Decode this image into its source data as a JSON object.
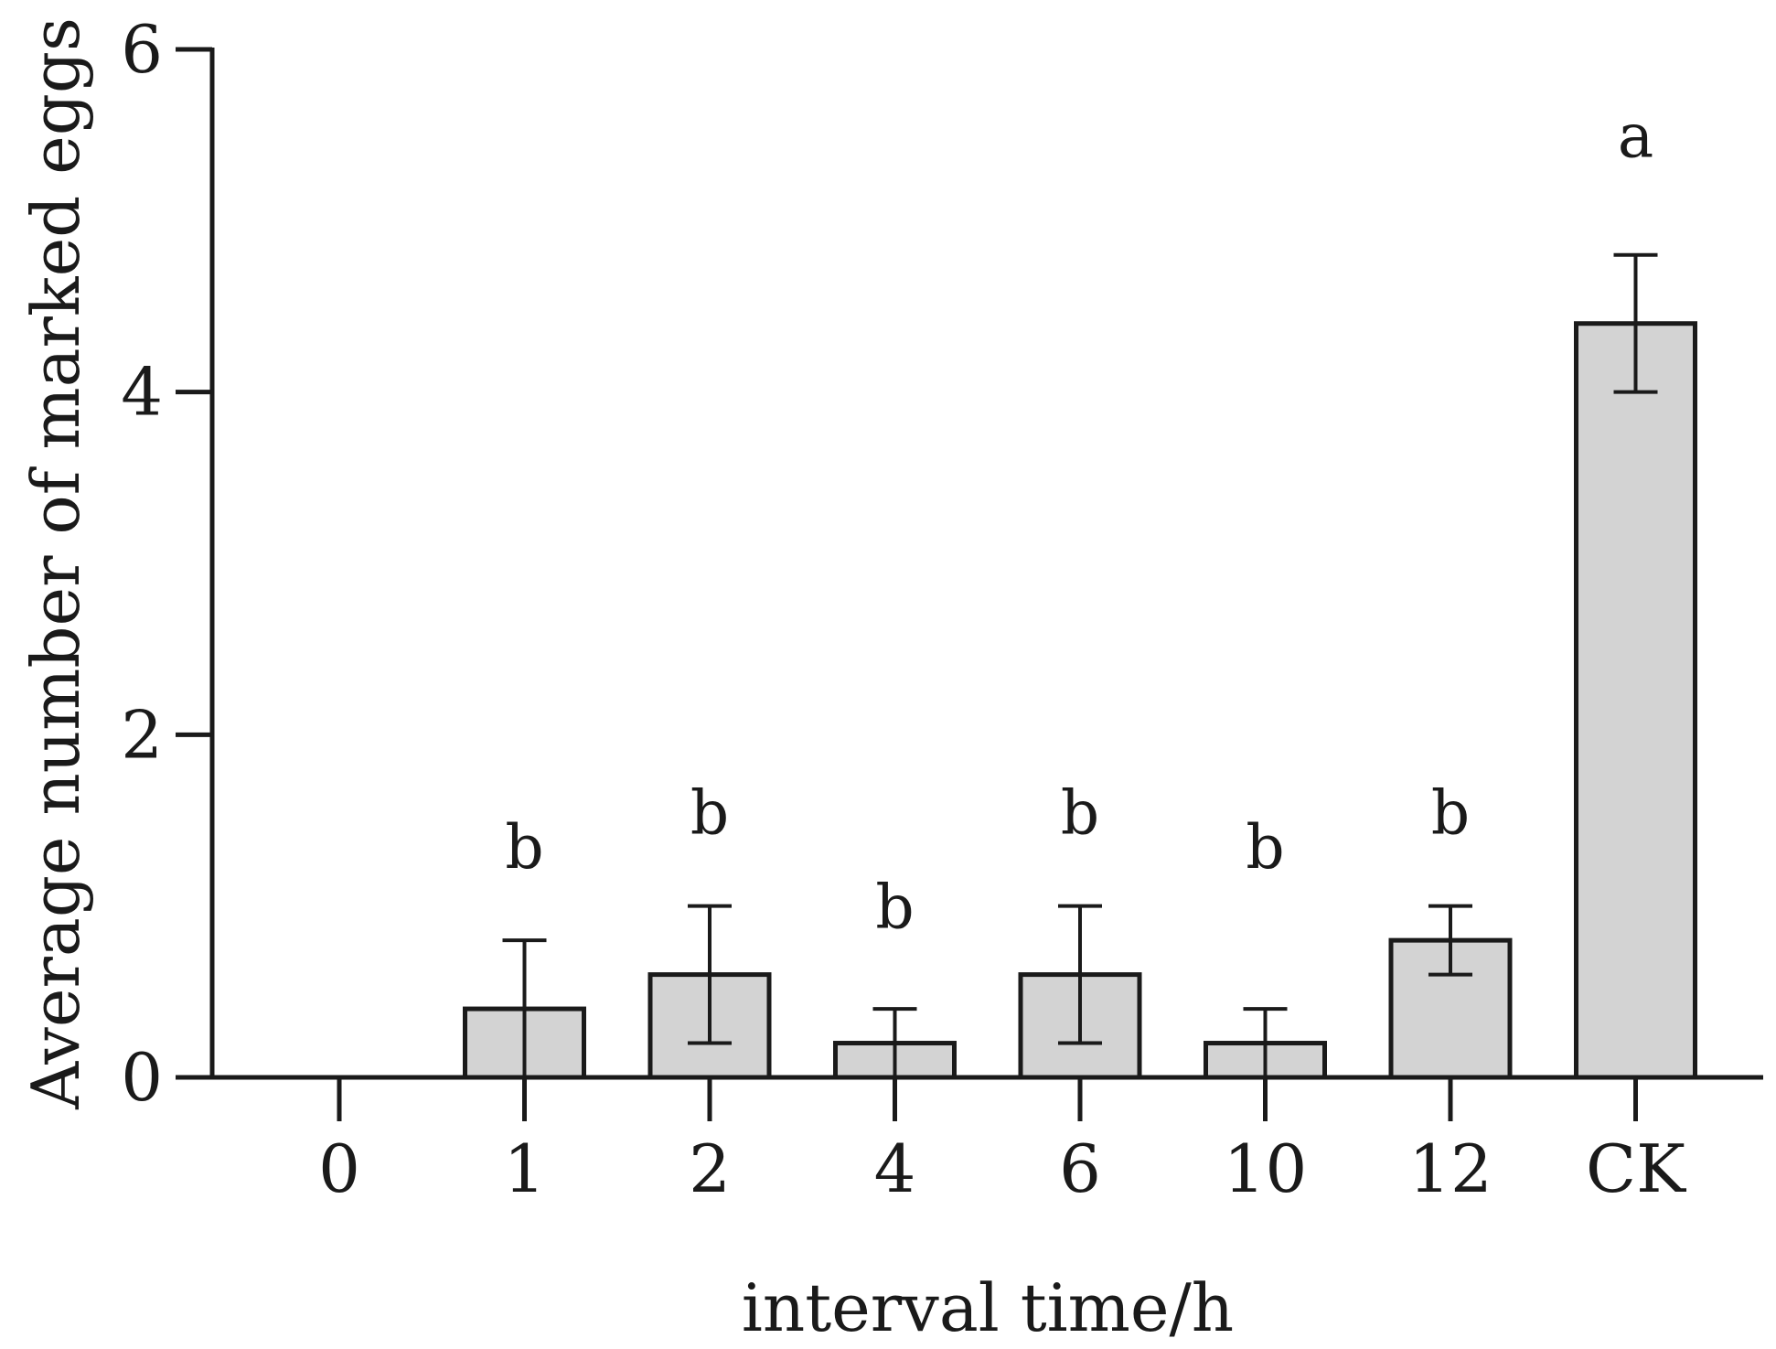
{
  "chart_data": {
    "type": "bar",
    "categories": [
      "0",
      "1",
      "2",
      "4",
      "6",
      "10",
      "12",
      "CK"
    ],
    "values": [
      0,
      0.4,
      0.6,
      0.2,
      0.6,
      0.2,
      0.8,
      4.4
    ],
    "error": [
      [
        0,
        0
      ],
      [
        0,
        0.8
      ],
      [
        0.2,
        1.0
      ],
      [
        0,
        0.4
      ],
      [
        0.2,
        1.0
      ],
      [
        0,
        0.4
      ],
      [
        0.6,
        1.0
      ],
      [
        4.0,
        4.8
      ]
    ],
    "significance": [
      "",
      "b",
      "b",
      "b",
      "b",
      "b",
      "b",
      "a"
    ],
    "sig_y": [
      0,
      1.35,
      1.55,
      1.0,
      1.55,
      1.35,
      1.55,
      5.5
    ],
    "xlabel": "interval time/h",
    "ylabel": "Average number of marked eggs",
    "ylim": [
      0,
      6
    ],
    "yticks": [
      0,
      2,
      4,
      6
    ],
    "ytick_labels": [
      "0",
      "2",
      "4",
      "6"
    ],
    "grid": false,
    "legend": "none",
    "colors": {
      "bar_fill": "#d3d3d3",
      "bar_stroke": "#1a1a1a",
      "axis": "#1a1a1a"
    }
  }
}
